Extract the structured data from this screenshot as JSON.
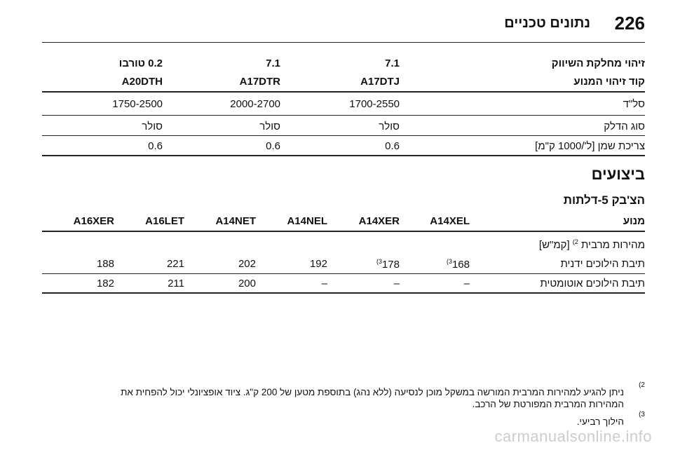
{
  "header": {
    "page_number": "226",
    "title": "נתונים טכניים"
  },
  "table1": {
    "row_fuel": {
      "label": "זיהוי מחלקת השיווק",
      "values": [
        "7.1",
        "7.1",
        "0.2 טורבו"
      ]
    },
    "row_code": {
      "label": "קוד זיהוי המנוע",
      "values": [
        "A17DTJ",
        "A17DTR",
        "A20DTH"
      ]
    },
    "row_rpm": {
      "label": "סל\"ד",
      "values": [
        "1700-2550",
        "2000-2700",
        "1750-2500"
      ]
    },
    "row_fuel_type": {
      "label": "סוג הדלק",
      "values": [
        "סולר",
        "סולר",
        "סולר"
      ]
    },
    "row_oil": {
      "label": "צריכת שמן [ל'/1000 ק\"מ]",
      "values": [
        "0.6",
        "0.6",
        "0.6"
      ]
    }
  },
  "section": {
    "title": "ביצועים",
    "subtitle": "הצ'בק 5-דלתות"
  },
  "table2": {
    "header_label": "מנוע",
    "engines": [
      "A14XEL",
      "A14XER",
      "A14NEL",
      "A14NET",
      "A16LET",
      "A16XER"
    ],
    "speed_label": "מהירות מרבית",
    "speed_sup": "2)",
    "speed_unit": "[קמ\"ש]",
    "row_manual": {
      "label": "תיבת הילוכים ידנית",
      "values": [
        "168",
        "178",
        "192",
        "202",
        "221",
        "188"
      ],
      "sup": "(3"
    },
    "row_auto": {
      "label": "תיבת הילוכים אוטומטית",
      "values": [
        "–",
        "–",
        "–",
        "200",
        "211",
        "182"
      ]
    }
  },
  "footnotes": {
    "n2_mark": "(2",
    "n2_line1": "ניתן להגיע למהירות המרבית המורשה במשקל מוכן לנסיעה (ללא נהג) בתוספת מטען של 200 ק\"ג. ציוד אופציונלי יכול להפחית את",
    "n2_line2": "המהירות המרבית המפורטת של הרכב.",
    "n3_mark": "(3",
    "n3_line1": "הילוך רביעי."
  },
  "watermark": "carmanualsonline.info"
}
